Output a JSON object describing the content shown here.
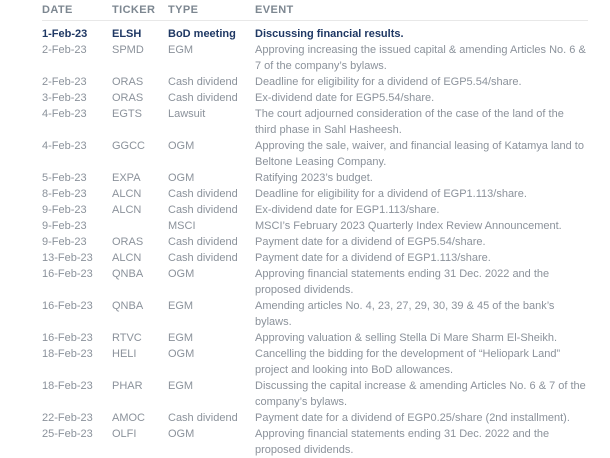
{
  "colors": {
    "header_text": "#7d8791",
    "body_text": "#8b929b",
    "highlight_text": "#1f3864",
    "header_divider": "#e8e8e8",
    "background": "#ffffff"
  },
  "table": {
    "header": {
      "date": "DATE",
      "ticker": "TICKER",
      "type": "TYPE",
      "event": "EVENT"
    },
    "rows": [
      {
        "date": "1-Feb-23",
        "ticker": "ELSH",
        "type": "BoD meeting",
        "event": "Discussing financial results.",
        "highlight": true
      },
      {
        "date": "2-Feb-23",
        "ticker": "SPMD",
        "type": "EGM",
        "event": "Approving increasing the issued capital & amending Articles No. 6 & 7 of the company’s bylaws.",
        "highlight": false
      },
      {
        "date": "2-Feb-23",
        "ticker": "ORAS",
        "type": "Cash dividend",
        "event": "Deadline for eligibility for a dividend of EGP5.54/share.",
        "highlight": false
      },
      {
        "date": "3-Feb-23",
        "ticker": "ORAS",
        "type": "Cash dividend",
        "event": "Ex-dividend date for EGP5.54/share.",
        "highlight": false
      },
      {
        "date": "4-Feb-23",
        "ticker": "EGTS",
        "type": "Lawsuit",
        "event": "The court adjourned consideration of the case of the land of the third phase in Sahl Hasheesh.",
        "highlight": false
      },
      {
        "date": "4-Feb-23",
        "ticker": "GGCC",
        "type": "OGM",
        "event": "Approving the sale, waiver, and financial leasing of Katamya land to Beltone Leasing Company.",
        "highlight": false
      },
      {
        "date": "5-Feb-23",
        "ticker": "EXPA",
        "type": "OGM",
        "event": "Ratifying 2023’s budget.",
        "highlight": false
      },
      {
        "date": "8-Feb-23",
        "ticker": "ALCN",
        "type": "Cash dividend",
        "event": "Deadline for eligibility for a dividend of EGP1.113/share.",
        "highlight": false
      },
      {
        "date": "9-Feb-23",
        "ticker": "ALCN",
        "type": "Cash dividend",
        "event": "Ex-dividend date for EGP1.113/share.",
        "highlight": false
      },
      {
        "date": "9-Feb-23",
        "ticker": "",
        "type": "MSCI",
        "event": "MSCI’s February 2023 Quarterly Index Review Announcement.",
        "highlight": false
      },
      {
        "date": "9-Feb-23",
        "ticker": "ORAS",
        "type": "Cash dividend",
        "event": "Payment date for a dividend of EGP5.54/share.",
        "highlight": false
      },
      {
        "date": "13-Feb-23",
        "ticker": "ALCN",
        "type": "Cash dividend",
        "event": "Payment date for a dividend of EGP1.113/share.",
        "highlight": false
      },
      {
        "date": "16-Feb-23",
        "ticker": "QNBA",
        "type": "OGM",
        "event": "Approving financial statements ending 31 Dec. 2022 and the proposed dividends.",
        "highlight": false
      },
      {
        "date": "16-Feb-23",
        "ticker": "QNBA",
        "type": "EGM",
        "event": "Amending articles No. 4, 23, 27, 29, 30, 39 & 45 of the bank’s bylaws.",
        "highlight": false
      },
      {
        "date": "16-Feb-23",
        "ticker": "RTVC",
        "type": "EGM",
        "event": "Approving valuation & selling Stella Di Mare Sharm El-Sheikh.",
        "highlight": false
      },
      {
        "date": "18-Feb-23",
        "ticker": "HELI",
        "type": "OGM",
        "event": "Cancelling the bidding for the development of “Heliopark Land” project and looking into BoD allowances.",
        "highlight": false
      },
      {
        "date": "18-Feb-23",
        "ticker": "PHAR",
        "type": "EGM",
        "event": "Discussing the capital increase & amending Articles No. 6 & 7 of the company’s bylaws.",
        "highlight": false
      },
      {
        "date": "22-Feb-23",
        "ticker": "AMOC",
        "type": "Cash dividend",
        "event": "Payment date for a dividend of EGP0.25/share (2nd installment).",
        "highlight": false
      },
      {
        "date": "25-Feb-23",
        "ticker": "OLFI",
        "type": "OGM",
        "event": "Approving financial statements ending 31 Dec. 2022 and the proposed dividends.",
        "highlight": false
      }
    ]
  }
}
